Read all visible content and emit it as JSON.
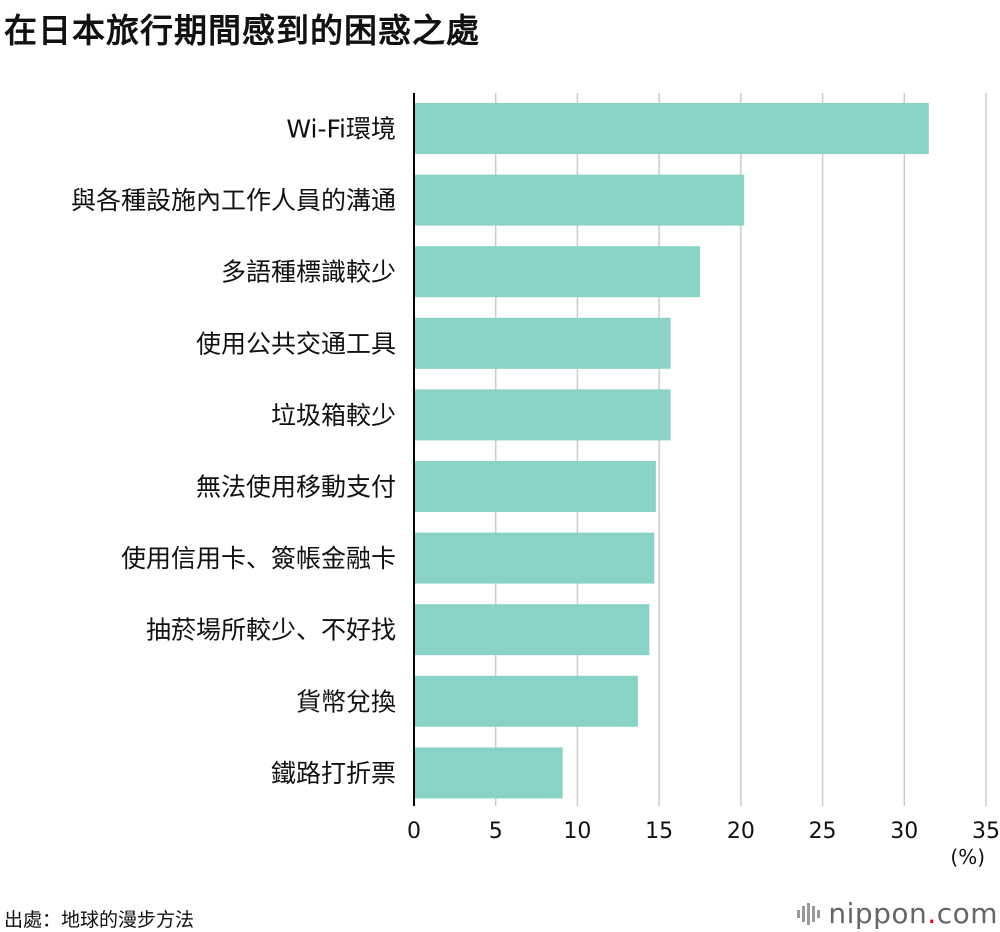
{
  "title": "在日本旅行期間感到的困惑之處",
  "source": "出處：地球的漫步方法",
  "logo": {
    "name": "nippon",
    "dot": ".",
    "suffix": "com",
    "icon": "nippon-logo-icon"
  },
  "colors": {
    "bar": "#88d3c5",
    "grid": "#cccccc",
    "axis": "#000000",
    "logo_dot": "#e60012"
  },
  "chart_data": {
    "type": "bar",
    "orientation": "horizontal",
    "categories": [
      "Wi-Fi環境",
      "與各種設施內工作人員的溝通",
      "多語種標識較少",
      "使用公共交通工具",
      "垃圾箱較少",
      "無法使用移動支付",
      "使用信用卡、簽帳金融卡",
      "抽菸場所較少、不好找",
      "貨幣兌換",
      "鐵路打折票"
    ],
    "values": [
      31.5,
      20.2,
      17.5,
      15.7,
      15.7,
      14.8,
      14.7,
      14.4,
      13.7,
      9.1
    ],
    "xlim": [
      0,
      35
    ],
    "xticks": [
      "0",
      "5",
      "10",
      "15",
      "20",
      "25",
      "30",
      "35"
    ],
    "xlabel": "(%)",
    "grid": true
  }
}
